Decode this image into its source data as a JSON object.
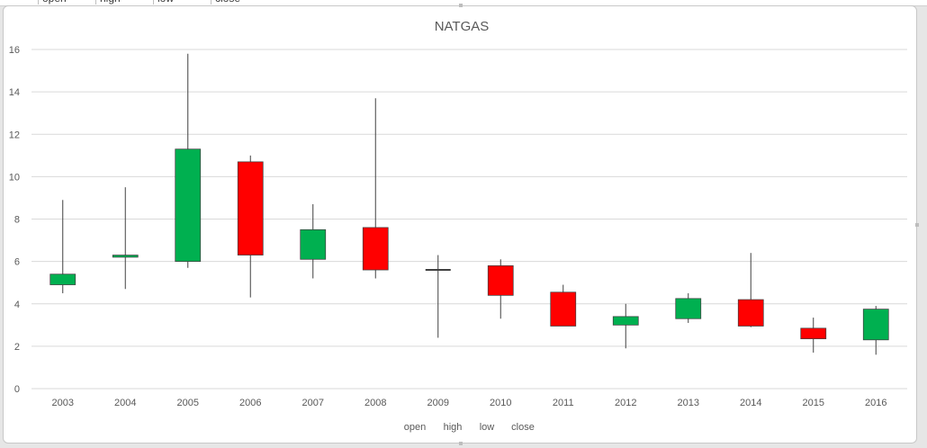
{
  "sheet_headers": [
    "open",
    "high",
    "low",
    "close"
  ],
  "chart_data": {
    "type": "candlestick",
    "title": "NATGAS",
    "xlabel": "",
    "ylabel": "",
    "ylim": [
      0,
      16
    ],
    "ytick_step": 2,
    "categories": [
      "2003",
      "2004",
      "2005",
      "2006",
      "2007",
      "2008",
      "2009",
      "2010",
      "2011",
      "2012",
      "2013",
      "2014",
      "2015",
      "2016"
    ],
    "series": [
      {
        "name": "open",
        "values": [
          4.9,
          6.2,
          6.0,
          10.7,
          6.1,
          7.6,
          5.6,
          5.8,
          4.55,
          3.0,
          3.3,
          4.2,
          2.85,
          2.3
        ]
      },
      {
        "name": "high",
        "values": [
          8.9,
          9.5,
          15.8,
          11.0,
          8.7,
          13.7,
          6.3,
          6.1,
          4.9,
          4.0,
          4.5,
          6.4,
          3.35,
          3.9
        ]
      },
      {
        "name": "low",
        "values": [
          4.5,
          4.7,
          5.7,
          4.3,
          5.2,
          5.2,
          2.4,
          3.3,
          3.0,
          1.9,
          3.1,
          2.9,
          1.7,
          1.6
        ]
      },
      {
        "name": "close",
        "values": [
          5.4,
          6.3,
          11.3,
          6.3,
          7.5,
          5.6,
          5.6,
          4.4,
          2.95,
          3.4,
          4.25,
          2.95,
          2.35,
          3.75
        ]
      }
    ],
    "legend": [
      "open",
      "high",
      "low",
      "close"
    ],
    "legend_position": "bottom",
    "grid": true,
    "colors": {
      "up": "#00b050",
      "down": "#ff0000",
      "wick": "#404040",
      "grid": "#d9d9d9",
      "text": "#595959"
    }
  }
}
